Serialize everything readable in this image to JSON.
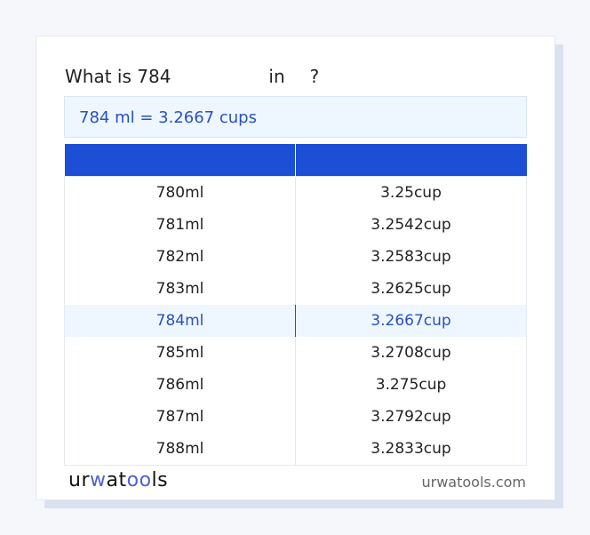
{
  "title": {
    "prefix": "What is 784",
    "mid": "in",
    "suffix": "?"
  },
  "result": "784 ml = 3.2667 cups",
  "table": {
    "headers": [
      "",
      ""
    ],
    "rows": [
      [
        "780ml",
        "3.25cup"
      ],
      [
        "781ml",
        "3.2542cup"
      ],
      [
        "782ml",
        "3.2583cup"
      ],
      [
        "783ml",
        "3.2625cup"
      ],
      [
        "784ml",
        "3.2667cup"
      ],
      [
        "785ml",
        "3.2708cup"
      ],
      [
        "786ml",
        "3.275cup"
      ],
      [
        "787ml",
        "3.2792cup"
      ],
      [
        "788ml",
        "3.2833cup"
      ]
    ],
    "highlighted_row": 4
  },
  "footer": {
    "logo": "urwatools",
    "site": "urwatools.com"
  },
  "colors": {
    "accent": "#1c4fd6",
    "highlight_text": "#2a50c0",
    "highlight_bg": "#eef6ff"
  }
}
